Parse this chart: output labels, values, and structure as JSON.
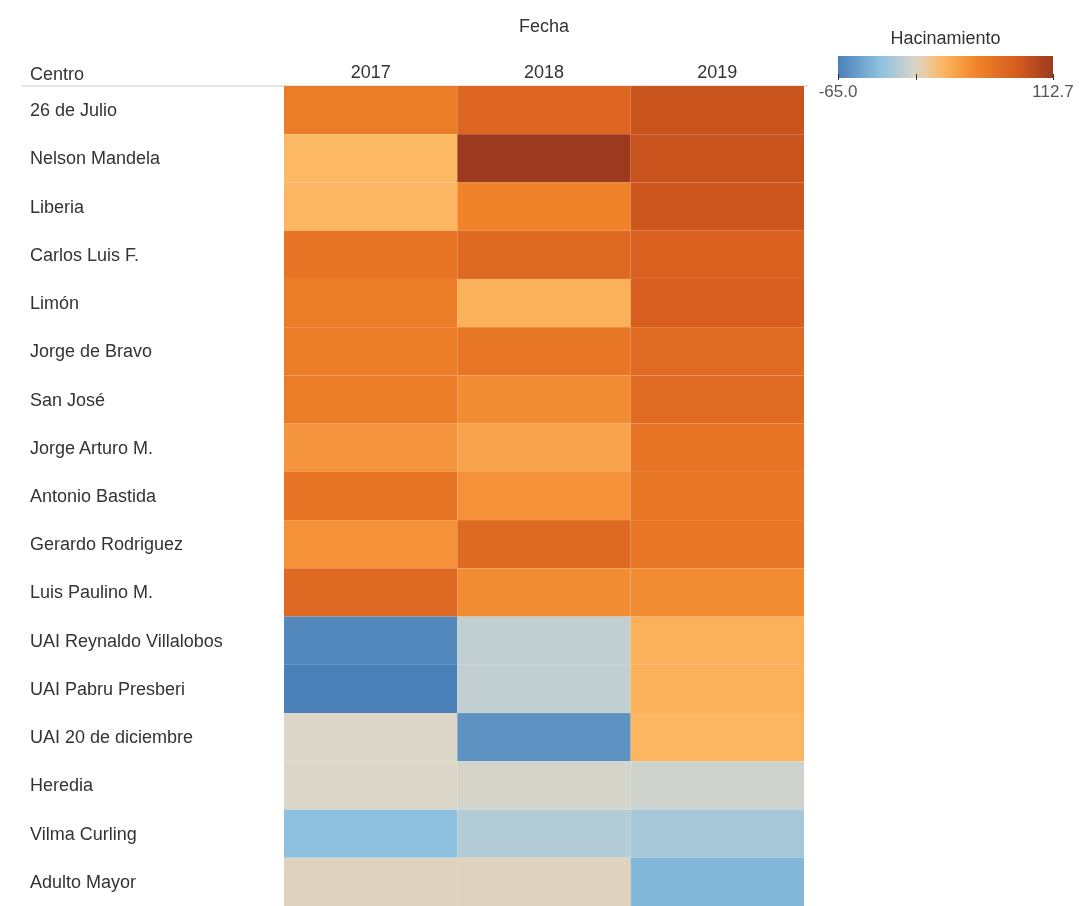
{
  "chart_data": {
    "type": "heatmap",
    "xlabel": "Fecha",
    "ylabel": "Centro",
    "clabel": "Hacinamiento",
    "categories": [
      "2017",
      "2018",
      "2019"
    ],
    "y_categories": [
      "26 de Julio",
      "Nelson Mandela",
      "Liberia",
      "Carlos Luis F.",
      "Limón",
      "Jorge de Bravo",
      "San José",
      "Jorge Arturo M.",
      "Antonio Bastida",
      "Gerardo Rodriguez",
      "Luis Paulino M.",
      "UAI Reynaldo Villalobos",
      "UAI Pabru Presberi",
      "UAI 20 de diciembre",
      "Heredia",
      "Vilma Curling",
      "Adulto Mayor"
    ],
    "cells": [
      [
        55,
        75,
        90
      ],
      [
        20,
        112.7,
        90
      ],
      [
        22,
        50,
        88
      ],
      [
        62,
        72,
        78
      ],
      [
        55,
        25,
        80
      ],
      [
        55,
        60,
        70
      ],
      [
        55,
        45,
        70
      ],
      [
        40,
        32,
        62
      ],
      [
        62,
        42,
        60
      ],
      [
        42,
        72,
        60
      ],
      [
        72,
        45,
        45
      ],
      [
        -60,
        -10,
        25
      ],
      [
        -65,
        -10,
        25
      ],
      [
        0,
        -55,
        22
      ],
      [
        0,
        -3,
        -5
      ],
      [
        -30,
        -15,
        -20
      ],
      [
        2,
        2,
        -35
      ]
    ],
    "clim": [
      -65,
      112.7
    ],
    "cticks": [
      {
        "value": -65,
        "label": "-65.0"
      },
      {
        "value": 0,
        "label": null
      },
      {
        "value": 112.7,
        "label": "112.7"
      }
    ]
  }
}
